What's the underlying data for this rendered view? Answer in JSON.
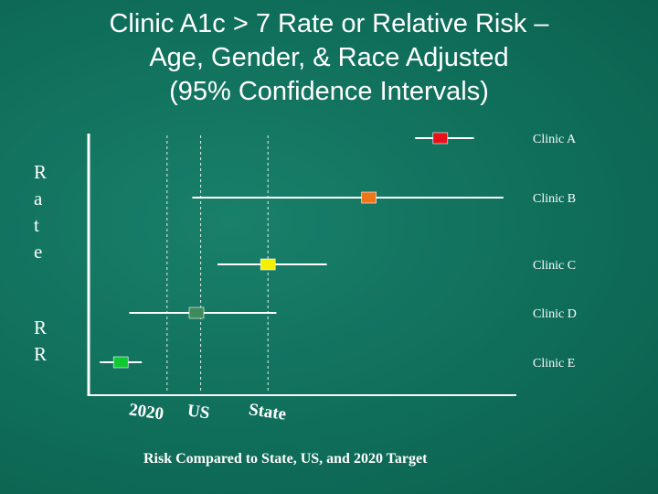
{
  "title": {
    "line1": "Clinic A1c > 7 Rate or Relative Risk –",
    "line2": "Age, Gender, & Race Adjusted",
    "line3": "(95% Confidence Intervals)"
  },
  "y_axis_label_top": [
    "R",
    "a",
    "t",
    "e"
  ],
  "y_axis_label_bottom": [
    "R",
    "R"
  ],
  "footer": "Risk Compared to State, US, and 2020 Target",
  "colors": {
    "axis": "#ffffff",
    "reference_line": "#e6efe9"
  },
  "chart_data": {
    "type": "forest",
    "x_range": [
      0,
      1
    ],
    "reference_lines": [
      {
        "label": "2020",
        "x": 0.18
      },
      {
        "label": "US",
        "x": 0.26
      },
      {
        "label": "State",
        "x": 0.42
      }
    ],
    "series": [
      {
        "name": "Clinic A",
        "estimate": 0.83,
        "low": 0.77,
        "high": 0.91,
        "color": "#e8101a"
      },
      {
        "name": "Clinic B",
        "estimate": 0.66,
        "low": 0.24,
        "high": 0.98,
        "color": "#f07418"
      },
      {
        "name": "Clinic C",
        "estimate": 0.42,
        "low": 0.3,
        "high": 0.56,
        "color": "#f5f000"
      },
      {
        "name": "Clinic D",
        "estimate": 0.25,
        "low": 0.09,
        "high": 0.44,
        "color": "#3e8a5a"
      },
      {
        "name": "Clinic E",
        "estimate": 0.07,
        "low": 0.02,
        "high": 0.12,
        "color": "#10c832"
      }
    ]
  }
}
